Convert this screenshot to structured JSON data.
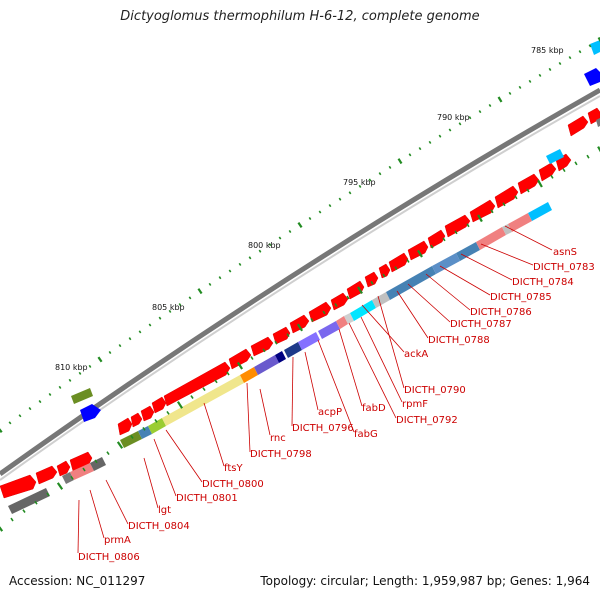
{
  "title": "Dictyoglomus thermophilum H-6-12, complete genome",
  "footer": {
    "accession": "Accession: NC_011297",
    "topology": "Topology: circular; Length: 1,959,987 bp; Genes: 1,964"
  },
  "colors": {
    "backbone": "#888888",
    "gene_forward": "#ff0000",
    "label": "#cc0000",
    "tick": "#228b22"
  },
  "ticks": [
    {
      "label": "785 kbp",
      "kb": 785
    },
    {
      "label": "790 kbp",
      "kb": 790
    },
    {
      "label": "795 kbp",
      "kb": 795
    },
    {
      "label": "800 kbp",
      "kb": 800
    },
    {
      "label": "805 kbp",
      "kb": 805
    },
    {
      "label": "810 kbp",
      "kb": 810
    }
  ],
  "gene_labels": [
    {
      "text": "asnS"
    },
    {
      "text": "DICTH_0783"
    },
    {
      "text": "DICTH_0784"
    },
    {
      "text": "DICTH_0785"
    },
    {
      "text": "DICTH_0786"
    },
    {
      "text": "DICTH_0787"
    },
    {
      "text": "DICTH_0788"
    },
    {
      "text": "ackA"
    },
    {
      "text": "DICTH_0790"
    },
    {
      "text": "rpmF"
    },
    {
      "text": "DICTH_0792"
    },
    {
      "text": "fabD"
    },
    {
      "text": "fabG"
    },
    {
      "text": "acpP"
    },
    {
      "text": "DICTH_0796"
    },
    {
      "text": "rnc"
    },
    {
      "text": "DICTH_0798"
    },
    {
      "text": "ftsY"
    },
    {
      "text": "DICTH_0800"
    },
    {
      "text": "DICTH_0801"
    },
    {
      "text": "lgt"
    },
    {
      "text": "DICTH_0804"
    },
    {
      "text": "prmA"
    },
    {
      "text": "DICTH_0806"
    }
  ]
}
